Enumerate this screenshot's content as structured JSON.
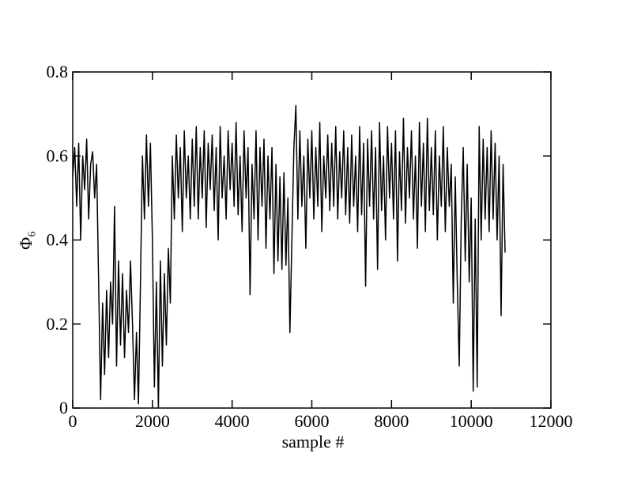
{
  "chart_data": {
    "type": "line",
    "xlabel": "sample #",
    "ylabel": "Φ₆",
    "xlim": [
      0,
      12000
    ],
    "xticks": [
      0,
      2000,
      4000,
      6000,
      8000,
      10000,
      12000
    ],
    "ylim": [
      0,
      0.8
    ],
    "yticks": [
      0,
      0.2,
      0.4,
      0.6,
      0.8
    ],
    "series": [
      {
        "color": "#000000",
        "x": [
          0,
          50,
          100,
          150,
          200,
          250,
          300,
          350,
          400,
          450,
          500,
          550,
          600,
          650,
          700,
          750,
          800,
          850,
          900,
          950,
          1000,
          1050,
          1100,
          1150,
          1200,
          1250,
          1300,
          1350,
          1400,
          1450,
          1500,
          1550,
          1600,
          1650,
          1700,
          1750,
          1800,
          1850,
          1900,
          1950,
          2000,
          2050,
          2100,
          2150,
          2200,
          2250,
          2300,
          2350,
          2400,
          2450,
          2500,
          2550,
          2600,
          2650,
          2700,
          2750,
          2800,
          2850,
          2900,
          2950,
          3000,
          3050,
          3100,
          3150,
          3200,
          3250,
          3300,
          3350,
          3400,
          3450,
          3500,
          3550,
          3600,
          3650,
          3700,
          3750,
          3800,
          3850,
          3900,
          3950,
          4000,
          4050,
          4100,
          4150,
          4200,
          4250,
          4300,
          4350,
          4400,
          4450,
          4500,
          4550,
          4600,
          4650,
          4700,
          4750,
          4800,
          4850,
          4900,
          4950,
          5000,
          5050,
          5100,
          5150,
          5200,
          5250,
          5300,
          5350,
          5400,
          5450,
          5500,
          5550,
          5600,
          5650,
          5700,
          5750,
          5800,
          5850,
          5900,
          5950,
          6000,
          6050,
          6100,
          6150,
          6200,
          6250,
          6300,
          6350,
          6400,
          6450,
          6500,
          6550,
          6600,
          6650,
          6700,
          6750,
          6800,
          6850,
          6900,
          6950,
          7000,
          7050,
          7100,
          7150,
          7200,
          7250,
          7300,
          7350,
          7400,
          7450,
          7500,
          7550,
          7600,
          7650,
          7700,
          7750,
          7800,
          7850,
          7900,
          7950,
          8000,
          8050,
          8100,
          8150,
          8200,
          8250,
          8300,
          8350,
          8400,
          8450,
          8500,
          8550,
          8600,
          8650,
          8700,
          8750,
          8800,
          8850,
          8900,
          8950,
          9000,
          9050,
          9100,
          9150,
          9200,
          9250,
          9300,
          9350,
          9400,
          9450,
          9500,
          9550,
          9600,
          9650,
          9700,
          9750,
          9800,
          9850,
          9900,
          9950,
          10000,
          10050,
          10100,
          10150,
          10200,
          10250,
          10300,
          10350,
          10400,
          10450,
          10500,
          10550,
          10600,
          10650,
          10700,
          10750,
          10800,
          10850
        ],
        "values": [
          0.55,
          0.62,
          0.48,
          0.63,
          0.4,
          0.6,
          0.52,
          0.64,
          0.45,
          0.58,
          0.61,
          0.5,
          0.58,
          0.3,
          0.02,
          0.25,
          0.08,
          0.28,
          0.12,
          0.3,
          0.2,
          0.48,
          0.1,
          0.35,
          0.15,
          0.32,
          0.12,
          0.28,
          0.18,
          0.35,
          0.2,
          0.02,
          0.18,
          0.01,
          0.3,
          0.6,
          0.45,
          0.65,
          0.48,
          0.63,
          0.4,
          0.05,
          0.3,
          0.0,
          0.35,
          0.1,
          0.32,
          0.15,
          0.38,
          0.25,
          0.6,
          0.45,
          0.65,
          0.5,
          0.62,
          0.42,
          0.66,
          0.5,
          0.6,
          0.45,
          0.64,
          0.48,
          0.67,
          0.45,
          0.62,
          0.5,
          0.66,
          0.43,
          0.63,
          0.52,
          0.65,
          0.47,
          0.62,
          0.4,
          0.67,
          0.5,
          0.6,
          0.45,
          0.66,
          0.52,
          0.63,
          0.48,
          0.68,
          0.46,
          0.6,
          0.42,
          0.66,
          0.5,
          0.62,
          0.27,
          0.58,
          0.45,
          0.66,
          0.4,
          0.62,
          0.48,
          0.64,
          0.38,
          0.6,
          0.45,
          0.62,
          0.32,
          0.58,
          0.35,
          0.55,
          0.33,
          0.56,
          0.34,
          0.5,
          0.18,
          0.4,
          0.62,
          0.72,
          0.45,
          0.66,
          0.48,
          0.6,
          0.38,
          0.64,
          0.5,
          0.66,
          0.45,
          0.62,
          0.48,
          0.68,
          0.42,
          0.6,
          0.5,
          0.65,
          0.47,
          0.63,
          0.48,
          0.67,
          0.45,
          0.61,
          0.5,
          0.66,
          0.46,
          0.62,
          0.44,
          0.65,
          0.48,
          0.6,
          0.42,
          0.67,
          0.46,
          0.63,
          0.29,
          0.64,
          0.48,
          0.66,
          0.45,
          0.62,
          0.33,
          0.68,
          0.47,
          0.6,
          0.4,
          0.67,
          0.5,
          0.63,
          0.45,
          0.66,
          0.35,
          0.61,
          0.47,
          0.69,
          0.44,
          0.62,
          0.5,
          0.66,
          0.45,
          0.6,
          0.38,
          0.68,
          0.48,
          0.63,
          0.42,
          0.69,
          0.47,
          0.62,
          0.46,
          0.66,
          0.4,
          0.6,
          0.48,
          0.67,
          0.42,
          0.62,
          0.48,
          0.58,
          0.25,
          0.55,
          0.3,
          0.1,
          0.45,
          0.62,
          0.35,
          0.58,
          0.3,
          0.5,
          0.04,
          0.45,
          0.05,
          0.67,
          0.4,
          0.64,
          0.45,
          0.62,
          0.42,
          0.66,
          0.45,
          0.63,
          0.4,
          0.6,
          0.22,
          0.58,
          0.37
        ]
      }
    ]
  }
}
